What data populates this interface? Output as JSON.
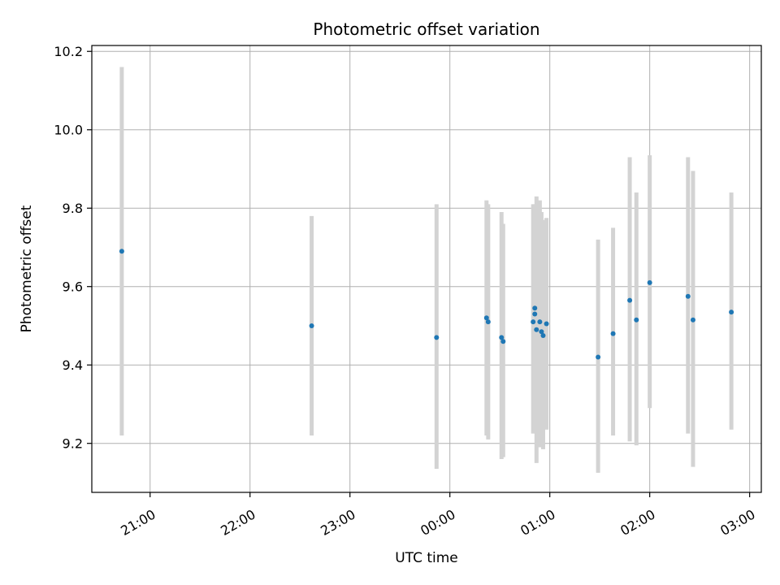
{
  "chart_data": {
    "type": "scatter",
    "title": "Photometric offset variation",
    "xlabel": "UTC time",
    "ylabel": "Photometric offset",
    "x_unit": "UTC time (HH:MM)",
    "x_ticks": [
      "21:00",
      "22:00",
      "23:00",
      "00:00",
      "01:00",
      "02:00",
      "03:00"
    ],
    "x_tick_values": [
      "21:00",
      "22:00",
      "23:00",
      "24:00",
      "25:00",
      "26:00",
      "27:00"
    ],
    "xlim": [
      "20:25",
      "27:07"
    ],
    "y_ticks": [
      "9.2",
      "9.4",
      "9.6",
      "9.8",
      "10.0",
      "10.2"
    ],
    "y_tick_values": [
      9.2,
      9.4,
      9.6,
      9.8,
      10.0,
      10.2
    ],
    "ylim": [
      9.075,
      10.215
    ],
    "grid": true,
    "colors": {
      "marker": "#1f77b4",
      "errorbar": "#d3d3d3",
      "grid": "#b0b0b0"
    },
    "points": [
      {
        "x": "20:43",
        "y": 9.69,
        "ylow": 9.22,
        "yhigh": 10.16
      },
      {
        "x": "22:37",
        "y": 9.5,
        "ylow": 9.22,
        "yhigh": 9.78
      },
      {
        "x": "23:52",
        "y": 9.47,
        "ylow": 9.135,
        "yhigh": 9.81
      },
      {
        "x": "24:22",
        "y": 9.52,
        "ylow": 9.22,
        "yhigh": 9.82
      },
      {
        "x": "24:23",
        "y": 9.51,
        "ylow": 9.21,
        "yhigh": 9.81
      },
      {
        "x": "24:31",
        "y": 9.47,
        "ylow": 9.16,
        "yhigh": 9.79
      },
      {
        "x": "24:32",
        "y": 9.46,
        "ylow": 9.165,
        "yhigh": 9.76
      },
      {
        "x": "24:50",
        "y": 9.51,
        "ylow": 9.225,
        "yhigh": 9.81
      },
      {
        "x": "24:51",
        "y": 9.545,
        "ylow": 9.23,
        "yhigh": 9.81
      },
      {
        "x": "24:51",
        "y": 9.53,
        "ylow": 9.24,
        "yhigh": 9.8
      },
      {
        "x": "24:52",
        "y": 9.49,
        "ylow": 9.15,
        "yhigh": 9.83
      },
      {
        "x": "24:54",
        "y": 9.51,
        "ylow": 9.19,
        "yhigh": 9.82
      },
      {
        "x": "24:55",
        "y": 9.485,
        "ylow": 9.19,
        "yhigh": 9.79
      },
      {
        "x": "24:56",
        "y": 9.475,
        "ylow": 9.185,
        "yhigh": 9.77
      },
      {
        "x": "24:58",
        "y": 9.505,
        "ylow": 9.235,
        "yhigh": 9.775
      },
      {
        "x": "25:29",
        "y": 9.42,
        "ylow": 9.125,
        "yhigh": 9.72
      },
      {
        "x": "25:38",
        "y": 9.48,
        "ylow": 9.22,
        "yhigh": 9.75
      },
      {
        "x": "25:48",
        "y": 9.565,
        "ylow": 9.205,
        "yhigh": 9.93
      },
      {
        "x": "25:52",
        "y": 9.515,
        "ylow": 9.195,
        "yhigh": 9.84
      },
      {
        "x": "26:00",
        "y": 9.61,
        "ylow": 9.29,
        "yhigh": 9.935
      },
      {
        "x": "26:23",
        "y": 9.575,
        "ylow": 9.225,
        "yhigh": 9.93
      },
      {
        "x": "26:26",
        "y": 9.515,
        "ylow": 9.14,
        "yhigh": 9.895
      },
      {
        "x": "26:49",
        "y": 9.535,
        "ylow": 9.235,
        "yhigh": 9.84
      }
    ]
  }
}
